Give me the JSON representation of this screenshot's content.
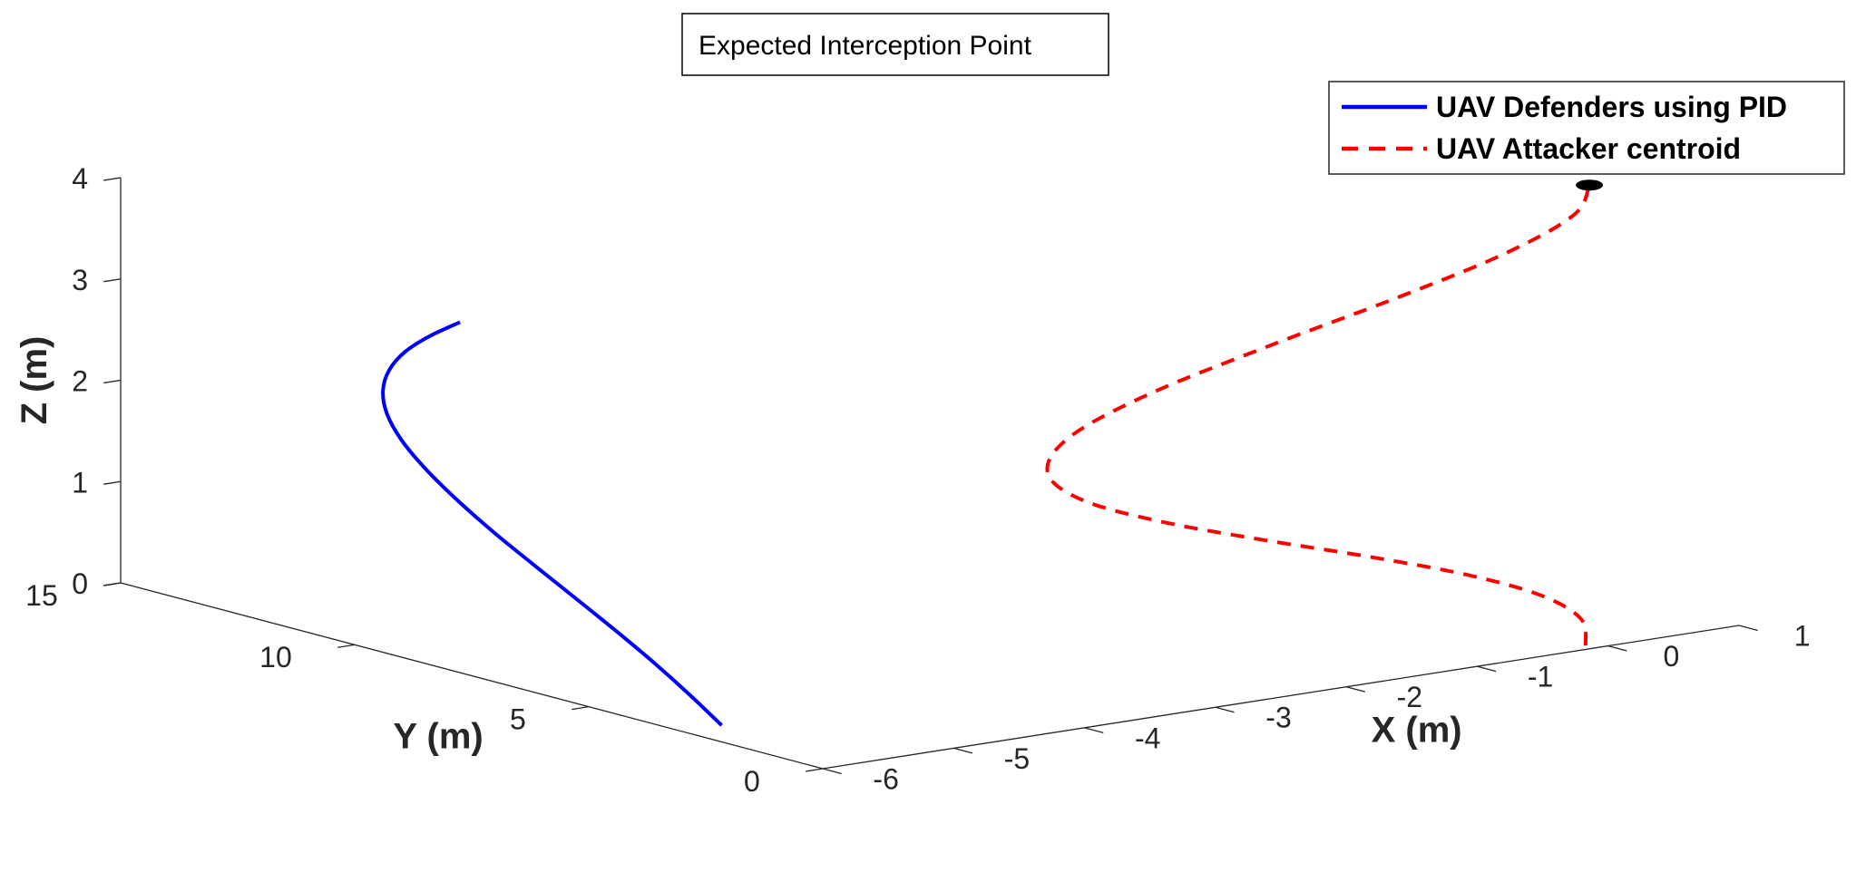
{
  "chart_data": {
    "type": "line",
    "projection": "3d",
    "xlabel": "X (m)",
    "ylabel": "Y (m)",
    "zlabel": "Z (m)",
    "xlim": [
      -6,
      1
    ],
    "ylim": [
      0,
      15
    ],
    "zlim": [
      0,
      4
    ],
    "xticks": [
      -6,
      -5,
      -4,
      -3,
      -2,
      -1,
      0,
      1
    ],
    "yticks": [
      0,
      5,
      10,
      15
    ],
    "zticks": [
      0,
      1,
      2,
      3,
      4
    ],
    "grid": false,
    "legend_position": "top-right",
    "colors": {
      "defenders": "#0000ff",
      "attacker": "#ff0000",
      "marker": "#000000",
      "axis": "#262626"
    },
    "series": [
      {
        "name": "UAV Defenders using PID",
        "style": "solid",
        "points": [
          [
            -5.7,
            3.0,
            0.0
          ],
          [
            -5.72,
            3.63,
            0.23
          ],
          [
            -5.74,
            4.32,
            0.46
          ],
          [
            -5.76,
            5.09,
            0.69
          ],
          [
            -5.78,
            5.91,
            0.92
          ],
          [
            -5.8,
            6.74,
            1.15
          ],
          [
            -5.82,
            7.55,
            1.38
          ],
          [
            -5.84,
            8.29,
            1.62
          ],
          [
            -5.86,
            8.89,
            1.85
          ],
          [
            -5.88,
            9.34,
            2.08
          ],
          [
            -5.9,
            9.59,
            2.31
          ],
          [
            -5.92,
            9.62,
            2.54
          ],
          [
            -5.94,
            9.43,
            2.77
          ],
          [
            -5.96,
            9.04,
            3.0
          ],
          [
            -5.98,
            8.46,
            3.23
          ],
          [
            -6.0,
            7.75,
            3.46
          ]
        ]
      },
      {
        "name": "UAV Attacker centroid",
        "style": "dashed",
        "points": [
          [
            -0.1,
            0.2,
            0.0
          ],
          [
            -0.19,
            0.05,
            0.3
          ],
          [
            -0.51,
            0.0,
            0.6
          ],
          [
            -1.04,
            0.06,
            0.9
          ],
          [
            -1.73,
            0.2,
            1.2
          ],
          [
            -2.49,
            0.39,
            1.5
          ],
          [
            -3.2,
            0.58,
            1.8
          ],
          [
            -3.74,
            0.76,
            2.1
          ],
          [
            -3.96,
            0.9,
            2.4
          ],
          [
            -3.76,
            0.99,
            2.7
          ],
          [
            -3.15,
            1.0,
            3.0
          ],
          [
            -2.25,
            0.95,
            3.3
          ],
          [
            -1.3,
            0.85,
            3.6
          ],
          [
            -0.52,
            0.71,
            3.9
          ],
          [
            -0.06,
            0.56,
            4.2
          ],
          [
            0.0,
            0.4,
            4.5
          ]
        ]
      }
    ],
    "annotation": {
      "text": "Expected Interception Point",
      "point": [
        0.0,
        0.4,
        4.5
      ]
    }
  }
}
